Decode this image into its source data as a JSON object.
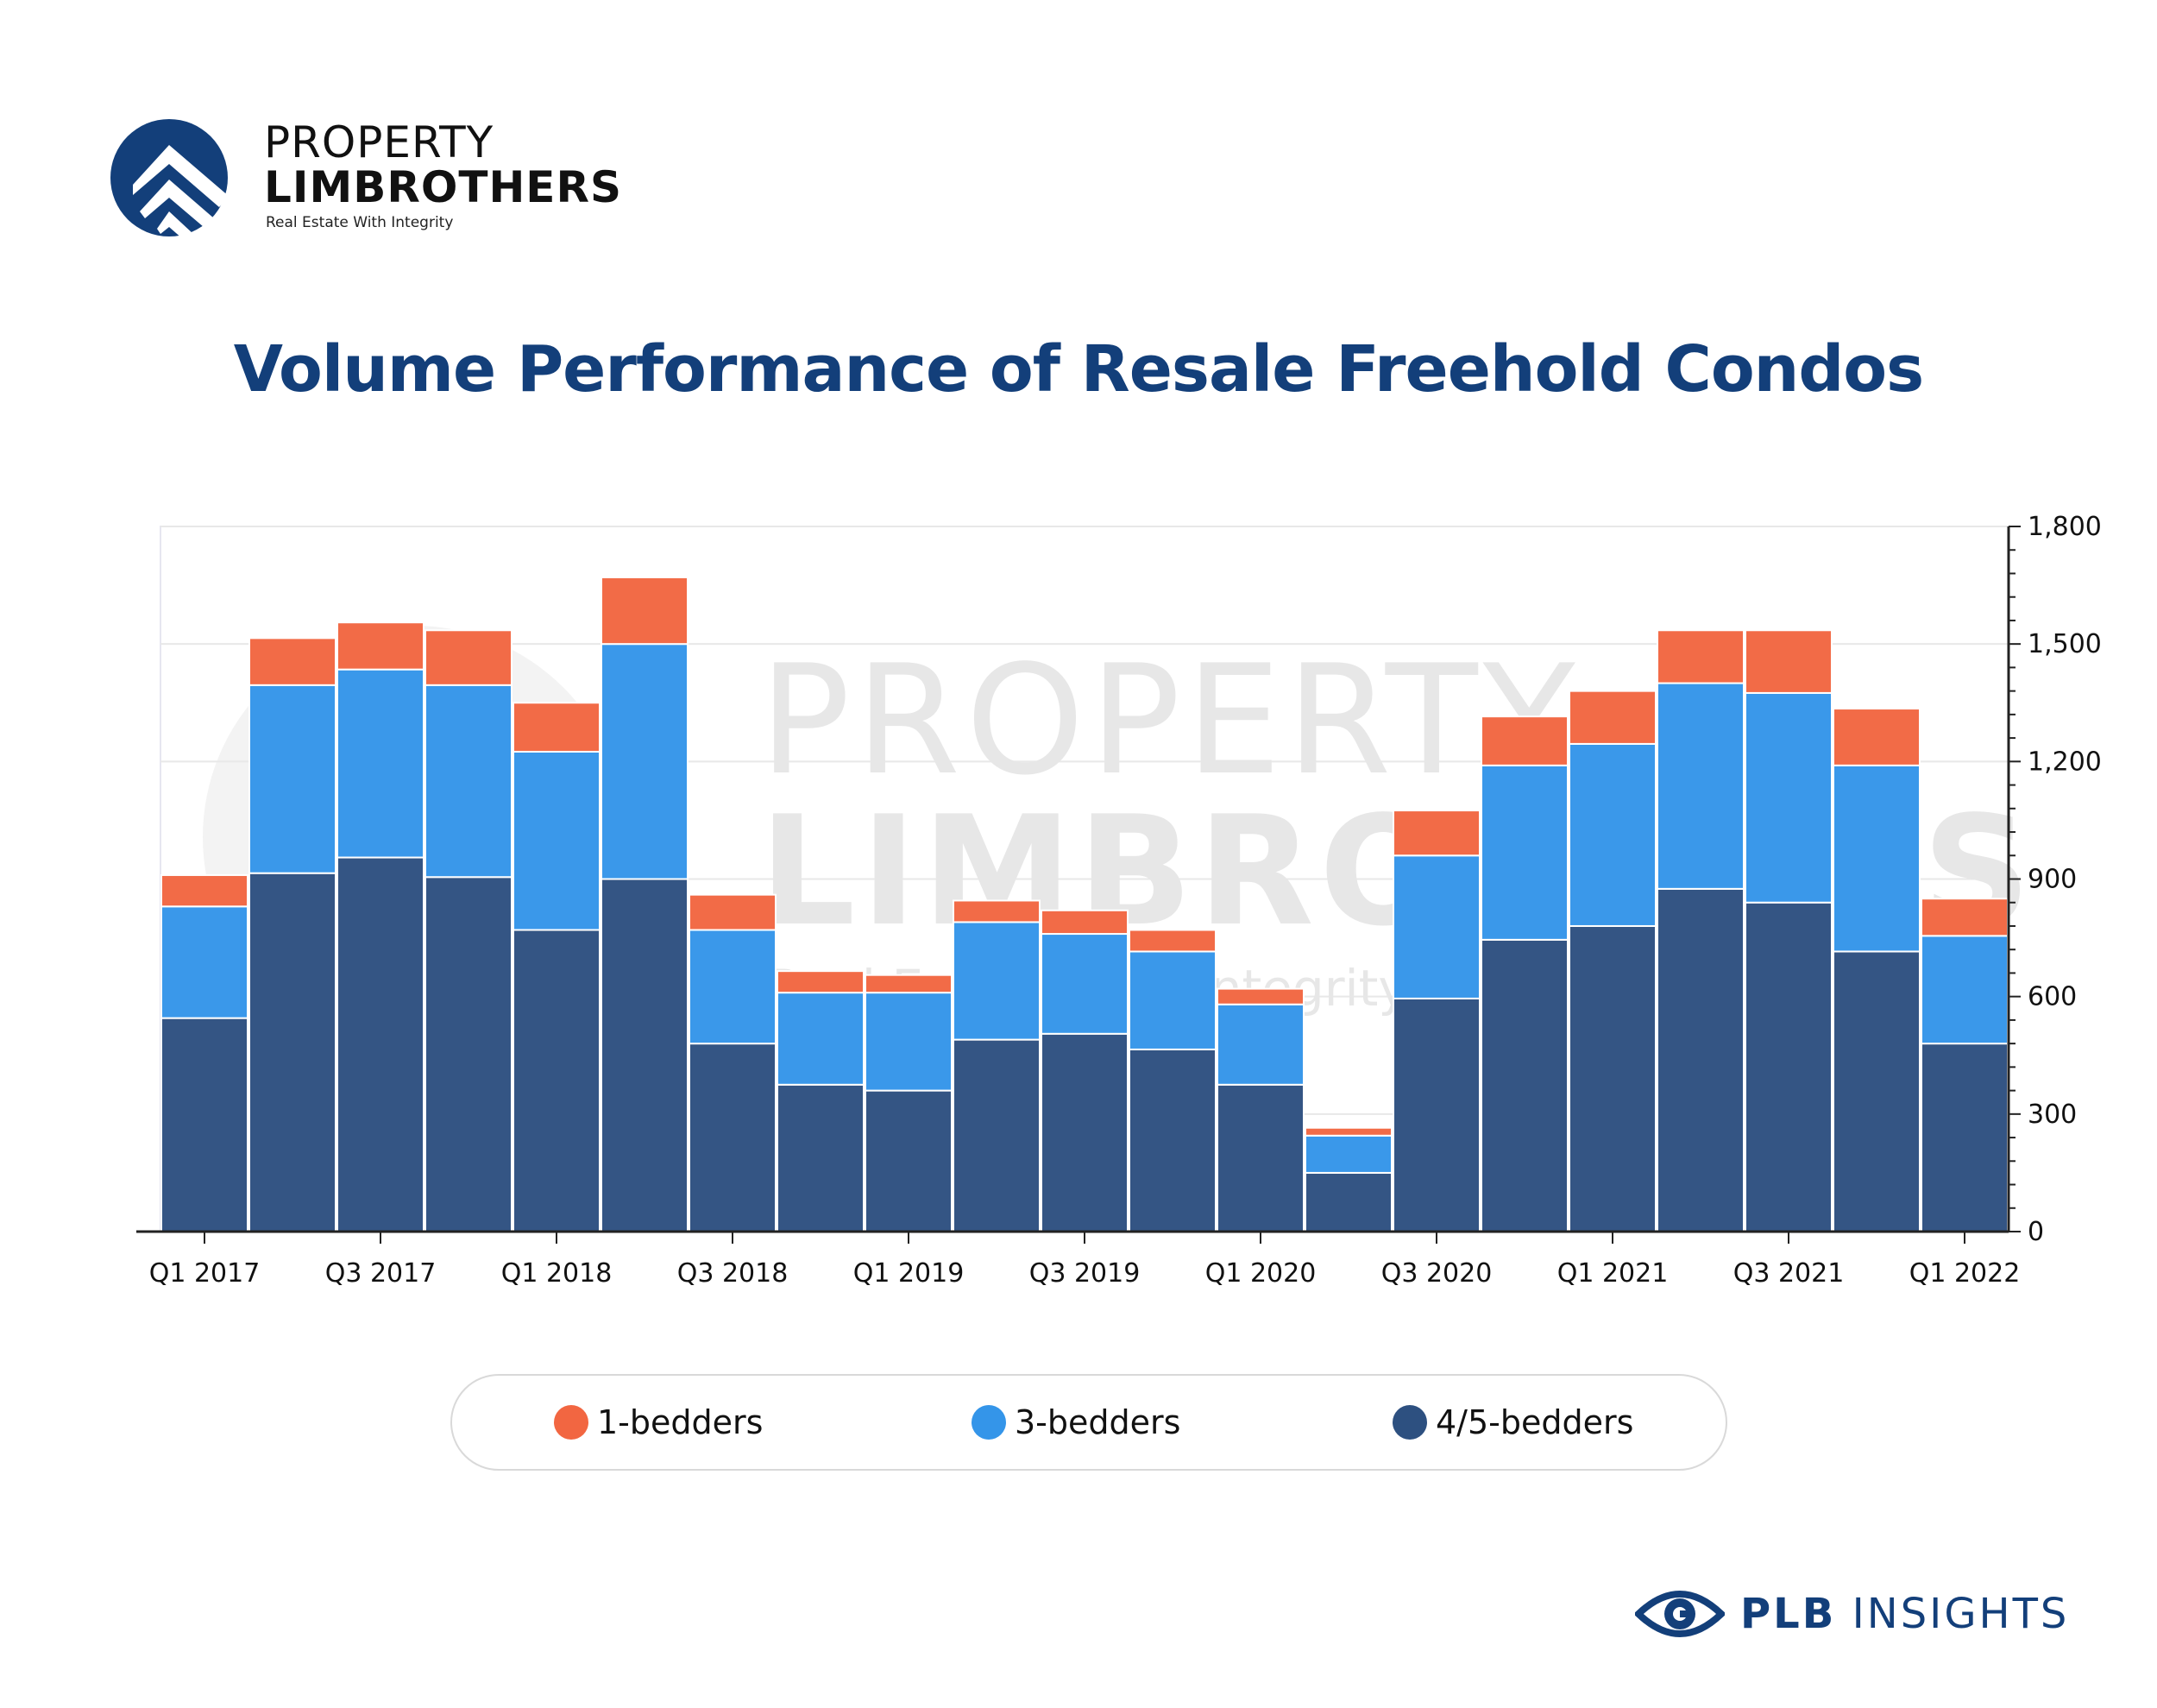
{
  "brand": {
    "name_line1": "PROPERTY",
    "name_line2": "LIMBROTHERS",
    "tagline": "Real Estate With Integrity",
    "mark_icon": "roof-chevron-logo-icon",
    "color": "#133f7a"
  },
  "footer": {
    "brand_bold": "PLB",
    "brand_rest": "INSIGHTS",
    "icon": "eye-logo-icon"
  },
  "chart_data": {
    "type": "bar",
    "stacked": true,
    "title": "Volume Performance of Resale Freehold Condos",
    "categories": [
      "Q1 2017",
      "Q2 2017",
      "Q3 2017",
      "Q4 2017",
      "Q1 2018",
      "Q2 2018",
      "Q3 2018",
      "Q4 2018",
      "Q1 2019",
      "Q2 2019",
      "Q3 2019",
      "Q4 2019",
      "Q1 2020",
      "Q2 2020",
      "Q3 2020",
      "Q4 2020",
      "Q1 2021",
      "Q2 2021",
      "Q3 2021",
      "Q4 2021",
      "Q1 2022"
    ],
    "tick_labels": [
      "Q1 2017",
      "Q3 2017",
      "Q1 2018",
      "Q3 2018",
      "Q1 2019",
      "Q3 2019",
      "Q1 2020",
      "Q3 2020",
      "Q1 2021",
      "Q3 2021",
      "Q1 2022"
    ],
    "series": [
      {
        "name": "4/5-bedders",
        "color": "#2d5080",
        "values": [
          545,
          915,
          955,
          905,
          770,
          900,
          480,
          375,
          360,
          490,
          505,
          465,
          375,
          150,
          595,
          745,
          780,
          875,
          840,
          715,
          480
        ]
      },
      {
        "name": "3-bedders",
        "color": "#3495e9",
        "values": [
          285,
          480,
          480,
          490,
          455,
          600,
          290,
          235,
          250,
          300,
          255,
          250,
          205,
          95,
          365,
          445,
          465,
          525,
          535,
          475,
          275
        ]
      },
      {
        "name": "1-bedders",
        "color": "#f26641",
        "values": [
          80,
          120,
          120,
          140,
          125,
          170,
          90,
          55,
          45,
          55,
          60,
          55,
          40,
          20,
          115,
          125,
          135,
          135,
          160,
          145,
          95
        ]
      }
    ],
    "legend_order": [
      "1-bedders",
      "3-bedders",
      "4/5-bedders"
    ],
    "yaxis": {
      "side": "right",
      "ticks": [
        0,
        300,
        600,
        900,
        1200,
        1500,
        1800
      ],
      "tick_labels": [
        "0",
        "300",
        "600",
        "900",
        "1,200",
        "1,500",
        "1,800"
      ],
      "ylim": [
        0,
        1800
      ]
    },
    "grid": true,
    "legend_position": "bottom",
    "watermark": {
      "line1": "PROPERTY",
      "line2": "LIMBROTHERS",
      "line3": "Real Estate With Integrity"
    }
  }
}
